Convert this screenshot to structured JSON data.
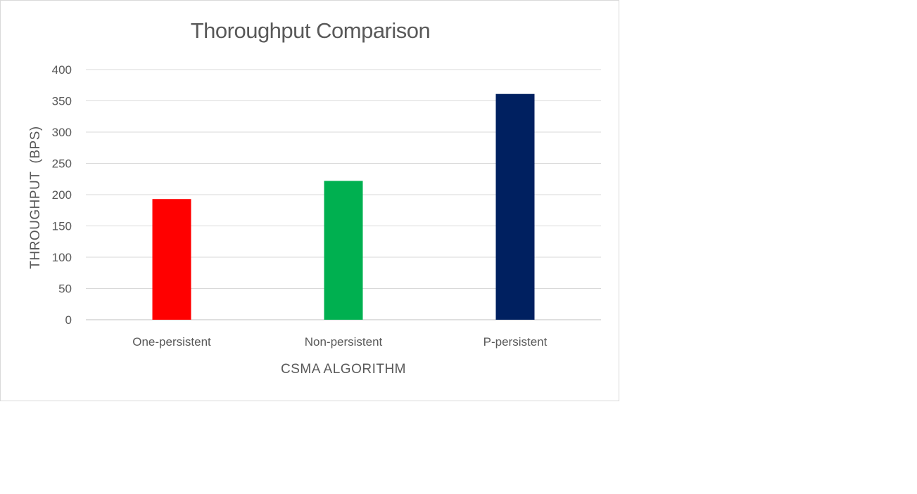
{
  "chart_data": {
    "type": "bar",
    "title": "Thoroughput Comparison",
    "xlabel": "CSMA ALGORITHM",
    "ylabel": "THROUGHPUT  (BPS)",
    "categories": [
      "One-persistent",
      "Non-persistent",
      "P-persistent"
    ],
    "values": [
      193,
      222,
      361
    ],
    "bar_colors": [
      "#ff0000",
      "#00b050",
      "#002060"
    ],
    "ylim": [
      0,
      400
    ],
    "yticks": [
      0,
      50,
      100,
      150,
      200,
      250,
      300,
      350,
      400
    ],
    "grid": true,
    "legend": "none"
  }
}
